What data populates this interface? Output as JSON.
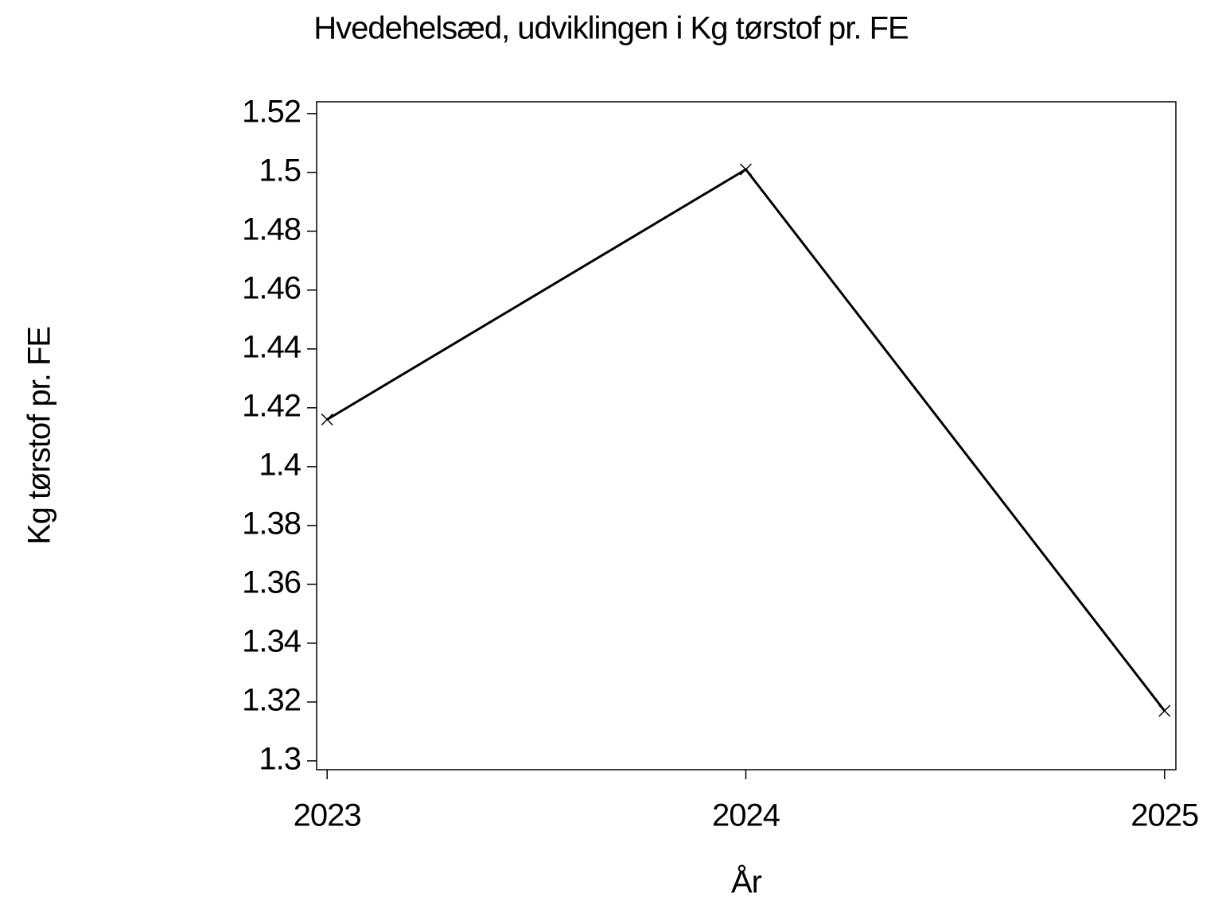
{
  "chart_data": {
    "type": "line",
    "title": "Hvedehelsæd, udviklingen i Kg tørstof pr. FE",
    "x_label": "År",
    "y_label": "Kg tørstof pr. FE",
    "x": [
      2023,
      2024,
      2025
    ],
    "series": [
      {
        "name": "Kg tørstof pr. FE",
        "color": "#000000",
        "values": [
          1.416,
          1.501,
          1.317
        ]
      }
    ],
    "xlim": [
      2022.975,
      2025.027
    ],
    "xticks": [
      2023,
      2024,
      2025
    ],
    "ylim": [
      1.297,
      1.524
    ],
    "yticks": [
      1.3,
      1.32,
      1.34,
      1.36,
      1.38,
      1.4,
      1.42,
      1.44,
      1.46,
      1.48,
      1.5,
      1.52
    ],
    "grid": false
  }
}
